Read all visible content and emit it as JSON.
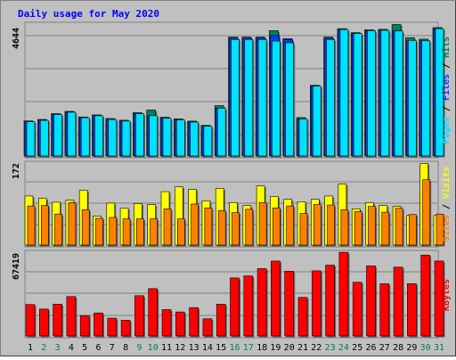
{
  "chart_data": [
    {
      "type": "bar",
      "title": "Daily usage for May 2020",
      "categories": [
        "1",
        "2",
        "3",
        "4",
        "5",
        "6",
        "7",
        "8",
        "9",
        "10",
        "11",
        "12",
        "13",
        "14",
        "15",
        "16",
        "17",
        "18",
        "19",
        "20",
        "21",
        "22",
        "23",
        "24",
        "25",
        "26",
        "27",
        "28",
        "29",
        "30",
        "31"
      ],
      "weekend_days": [
        "2",
        "3",
        "9",
        "10",
        "16",
        "17",
        "23",
        "24",
        "30",
        "31"
      ],
      "ylabel_max": "4644",
      "ylim": [
        0,
        4644
      ],
      "series": [
        {
          "name": "Hits",
          "color": "#00805c",
          "values": [
            1233,
            1286,
            1493,
            1570,
            1373,
            1446,
            1319,
            1258,
            1525,
            1618,
            1362,
            1306,
            1226,
            1076,
            1771,
            4183,
            4183,
            4183,
            4412,
            4130,
            1353,
            2487,
            4183,
            4483,
            4342,
            4444,
            4459,
            4629,
            4163,
            4114,
            4521
          ]
        },
        {
          "name": "Files",
          "color": "#0040ff",
          "values": [
            1203,
            1253,
            1461,
            1538,
            1344,
            1414,
            1283,
            1227,
            1492,
            1416,
            1327,
            1271,
            1191,
            1048,
            1685,
            4153,
            4153,
            4153,
            4241,
            4096,
            1303,
            2456,
            4153,
            4450,
            4312,
            4413,
            4423,
            4400,
            4067,
            4054,
            4483
          ]
        },
        {
          "name": "Pages",
          "color": "#00e0ff",
          "values": [
            1203,
            1253,
            1461,
            1538,
            1344,
            1414,
            1283,
            1227,
            1492,
            1416,
            1327,
            1271,
            1191,
            1048,
            1685,
            4099,
            4099,
            4099,
            4044,
            3983,
            1303,
            2456,
            4099,
            4450,
            4312,
            4413,
            4423,
            4400,
            4067,
            4054,
            4483
          ]
        }
      ]
    },
    {
      "type": "bar",
      "ylabel_max": "172",
      "ylim": [
        0,
        172
      ],
      "series": [
        {
          "name": "Visits",
          "color": "#ffff00",
          "values": [
            103,
            98,
            90,
            94,
            115,
            61,
            88,
            77,
            87,
            85,
            112,
            122,
            117,
            93,
            119,
            89,
            83,
            124,
            102,
            96,
            91,
            96,
            103,
            128,
            76,
            89,
            83,
            81,
            62,
            171,
            62
          ]
        },
        {
          "name": "Sites",
          "color": "#ff8000",
          "values": [
            82,
            83,
            65,
            89,
            74,
            56,
            58,
            55,
            55,
            55,
            76,
            55,
            86,
            78,
            72,
            68,
            75,
            89,
            78,
            82,
            66,
            85,
            84,
            74,
            70,
            81,
            69,
            77,
            64,
            137,
            65
          ]
        }
      ]
    },
    {
      "type": "bar",
      "ylabel_max": "67419",
      "ylim": [
        0,
        67419
      ],
      "series": [
        {
          "name": "KBytes",
          "color": "#ff0000",
          "values": [
            25300,
            21600,
            25600,
            31700,
            16400,
            18500,
            14300,
            12600,
            32400,
            38100,
            21200,
            19300,
            22800,
            13800,
            25600,
            46700,
            48300,
            54200,
            60300,
            52100,
            31000,
            52400,
            57000,
            67300,
            43200,
            56400,
            42000,
            55400,
            42100,
            65100,
            60300
          ]
        }
      ]
    }
  ]
}
